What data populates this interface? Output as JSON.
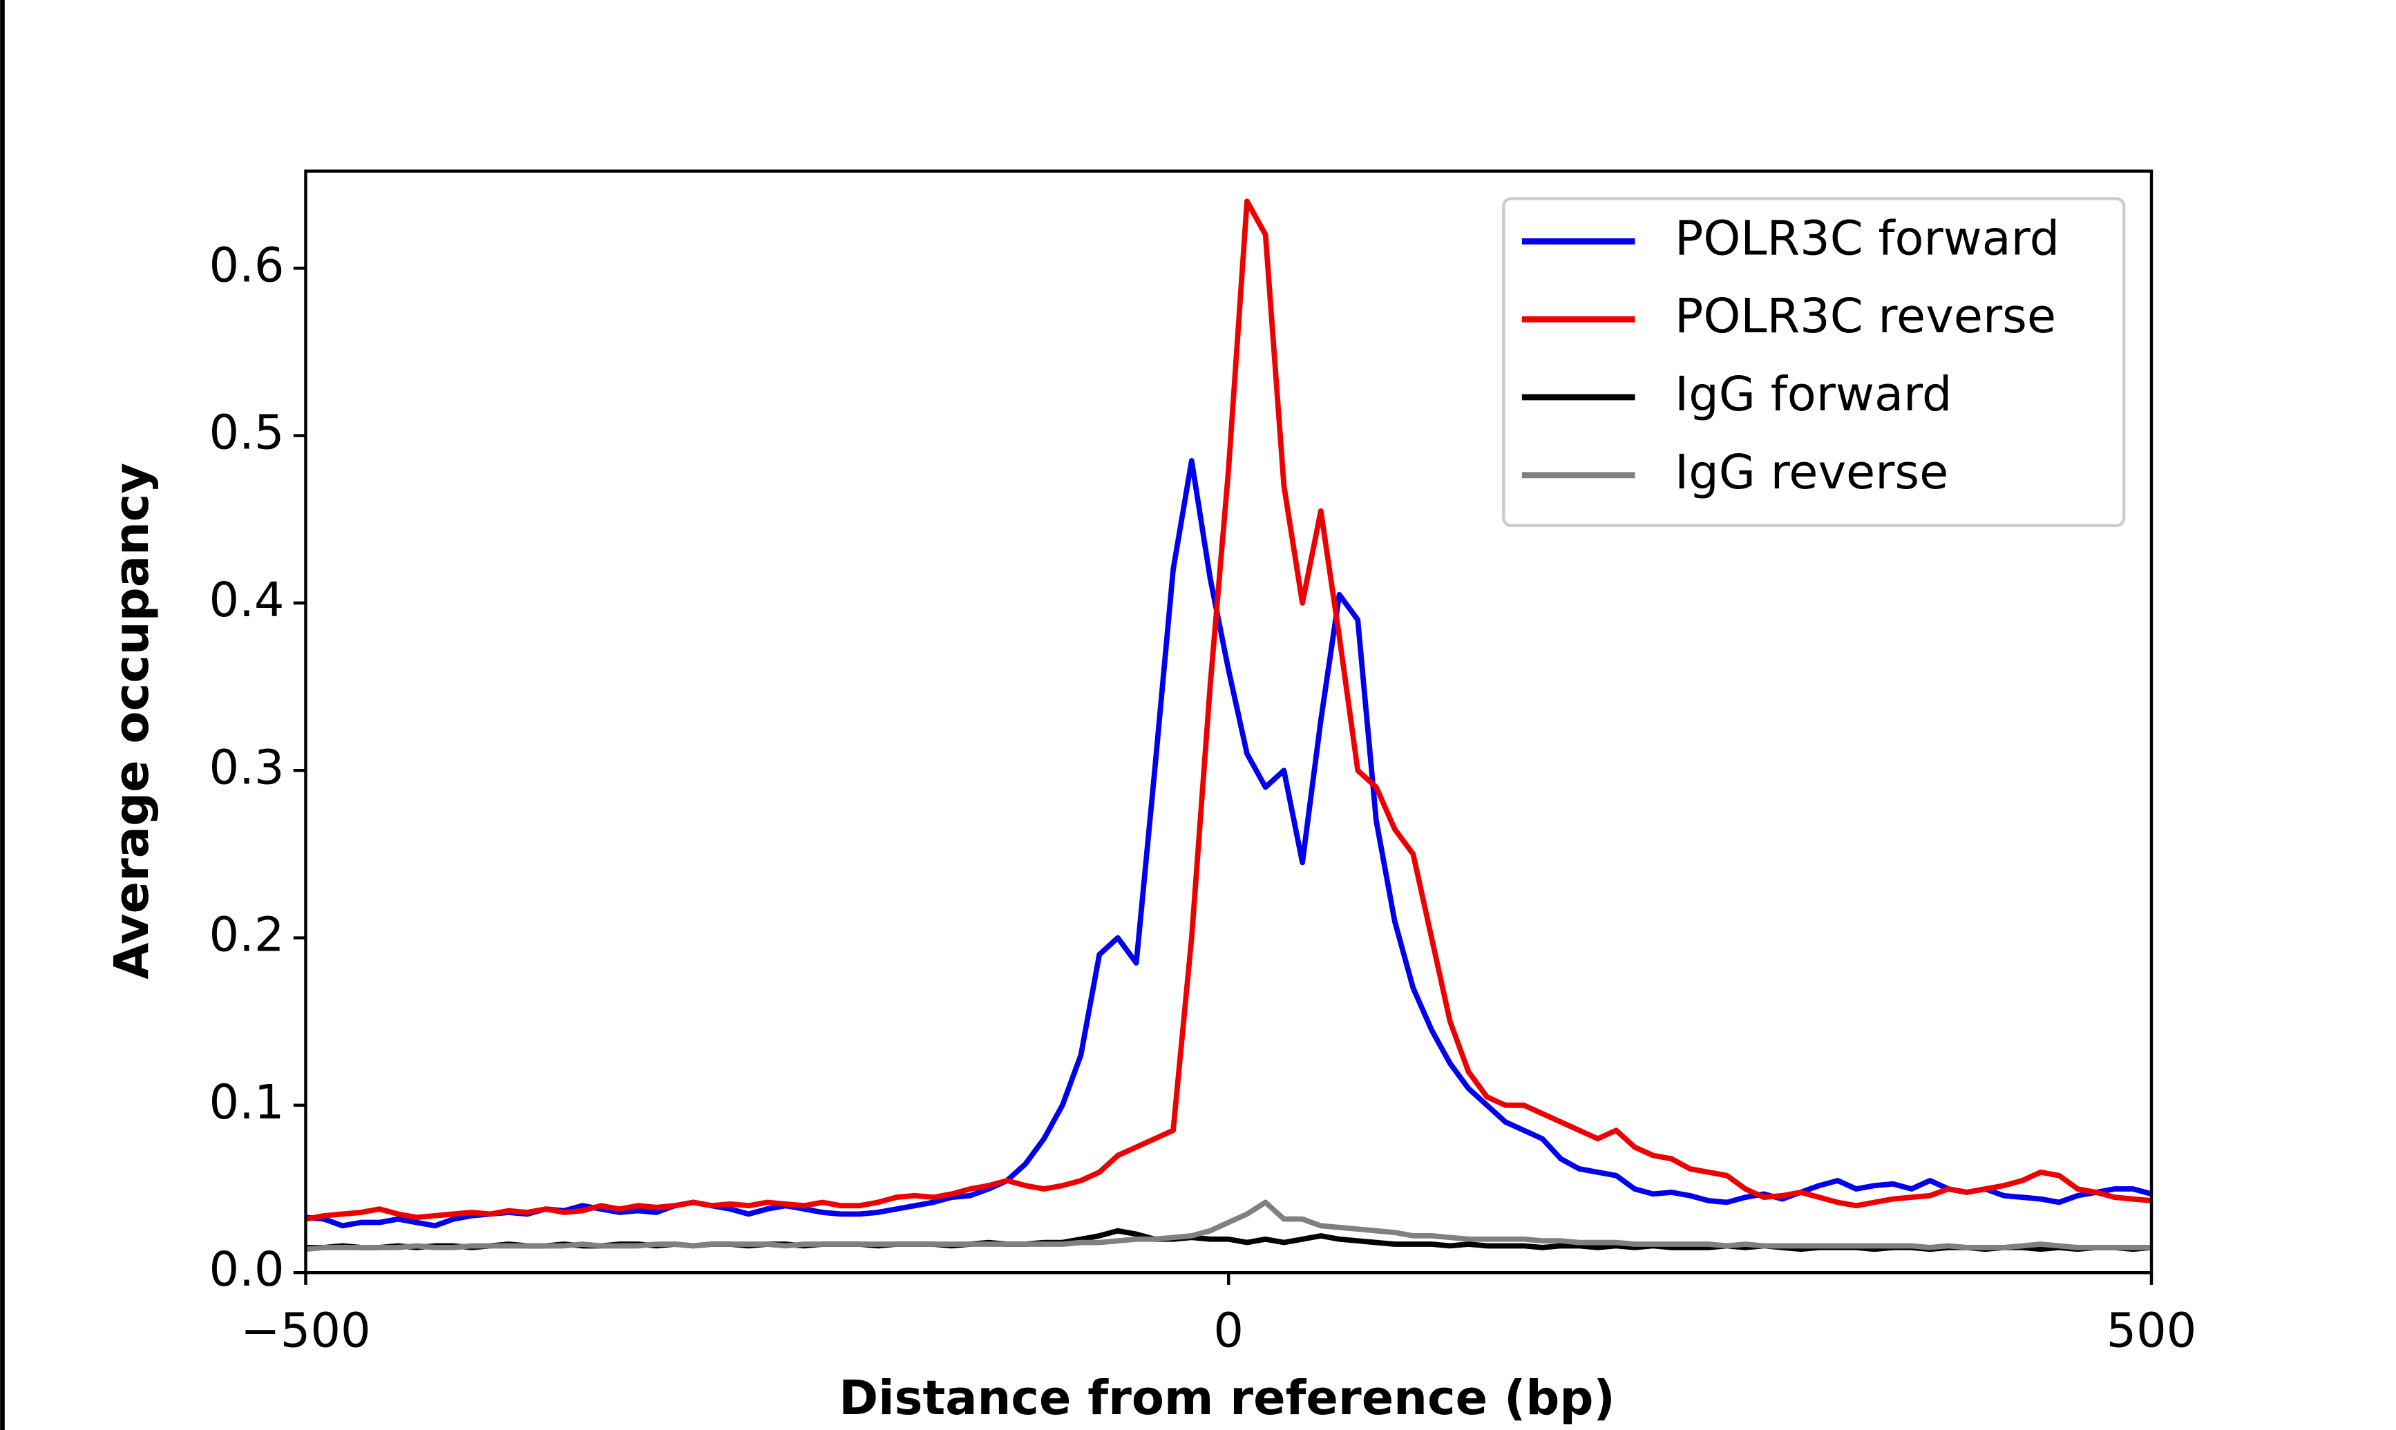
{
  "chart_data": {
    "type": "line",
    "xlabel": "Distance from reference (bp)",
    "ylabel": "Average occupancy",
    "xlim": [
      -500,
      500
    ],
    "ylim": [
      0,
      0.658
    ],
    "xticks": [
      {
        "value": -500,
        "label": "−500"
      },
      0,
      500
    ],
    "yticks": [
      {
        "value": 0,
        "label": "0.0"
      },
      0.1,
      0.2,
      0.3,
      0.4,
      0.5,
      0.6
    ],
    "legend": "upper right",
    "x": [
      -500,
      -490,
      -480,
      -470,
      -460,
      -450,
      -440,
      -430,
      -420,
      -410,
      -400,
      -390,
      -380,
      -370,
      -360,
      -350,
      -340,
      -330,
      -320,
      -310,
      -300,
      -290,
      -280,
      -270,
      -260,
      -250,
      -240,
      -230,
      -220,
      -210,
      -200,
      -190,
      -180,
      -170,
      -160,
      -150,
      -140,
      -130,
      -120,
      -110,
      -100,
      -90,
      -80,
      -70,
      -60,
      -50,
      -40,
      -30,
      -20,
      -10,
      0,
      10,
      20,
      30,
      40,
      50,
      60,
      70,
      80,
      90,
      100,
      110,
      120,
      130,
      140,
      150,
      160,
      170,
      180,
      190,
      200,
      210,
      220,
      230,
      240,
      250,
      260,
      270,
      280,
      290,
      300,
      310,
      320,
      330,
      340,
      350,
      360,
      370,
      380,
      390,
      400,
      410,
      420,
      430,
      440,
      450,
      460,
      470,
      480,
      490,
      500
    ],
    "series": [
      {
        "name": "POLR3C forward",
        "color": "#0000ee",
        "values": [
          0.033,
          0.032,
          0.028,
          0.03,
          0.03,
          0.032,
          0.03,
          0.028,
          0.032,
          0.034,
          0.035,
          0.036,
          0.035,
          0.038,
          0.037,
          0.04,
          0.038,
          0.036,
          0.037,
          0.036,
          0.04,
          0.042,
          0.04,
          0.038,
          0.035,
          0.038,
          0.04,
          0.038,
          0.036,
          0.035,
          0.035,
          0.036,
          0.038,
          0.04,
          0.042,
          0.045,
          0.046,
          0.05,
          0.055,
          0.065,
          0.08,
          0.1,
          0.13,
          0.19,
          0.2,
          0.185,
          0.3,
          0.42,
          0.485,
          0.415,
          0.36,
          0.31,
          0.29,
          0.3,
          0.245,
          0.33,
          0.405,
          0.39,
          0.27,
          0.21,
          0.17,
          0.145,
          0.125,
          0.11,
          0.1,
          0.09,
          0.085,
          0.08,
          0.068,
          0.062,
          0.06,
          0.058,
          0.05,
          0.047,
          0.048,
          0.046,
          0.043,
          0.042,
          0.045,
          0.047,
          0.044,
          0.048,
          0.052,
          0.055,
          0.05,
          0.052,
          0.053,
          0.05,
          0.055,
          0.05,
          0.048,
          0.05,
          0.046,
          0.045,
          0.044,
          0.042,
          0.046,
          0.048,
          0.05,
          0.05,
          0.047
        ]
      },
      {
        "name": "POLR3C reverse",
        "color": "#ee0000",
        "values": [
          0.032,
          0.034,
          0.035,
          0.036,
          0.038,
          0.035,
          0.033,
          0.034,
          0.035,
          0.036,
          0.035,
          0.037,
          0.036,
          0.038,
          0.036,
          0.037,
          0.04,
          0.038,
          0.04,
          0.039,
          0.04,
          0.042,
          0.04,
          0.041,
          0.04,
          0.042,
          0.041,
          0.04,
          0.042,
          0.04,
          0.04,
          0.042,
          0.045,
          0.046,
          0.045,
          0.047,
          0.05,
          0.052,
          0.055,
          0.052,
          0.05,
          0.052,
          0.055,
          0.06,
          0.07,
          0.075,
          0.08,
          0.085,
          0.2,
          0.35,
          0.48,
          0.64,
          0.62,
          0.47,
          0.4,
          0.455,
          0.38,
          0.3,
          0.29,
          0.265,
          0.25,
          0.2,
          0.15,
          0.12,
          0.105,
          0.1,
          0.1,
          0.095,
          0.09,
          0.085,
          0.08,
          0.085,
          0.075,
          0.07,
          0.068,
          0.062,
          0.06,
          0.058,
          0.05,
          0.045,
          0.046,
          0.048,
          0.045,
          0.042,
          0.04,
          0.042,
          0.044,
          0.045,
          0.046,
          0.05,
          0.048,
          0.05,
          0.052,
          0.055,
          0.06,
          0.058,
          0.05,
          0.048,
          0.045,
          0.044,
          0.043
        ]
      },
      {
        "name": "IgG forward",
        "color": "#000000",
        "values": [
          0.015,
          0.015,
          0.016,
          0.015,
          0.015,
          0.016,
          0.015,
          0.016,
          0.016,
          0.015,
          0.016,
          0.017,
          0.016,
          0.016,
          0.017,
          0.016,
          0.016,
          0.017,
          0.017,
          0.016,
          0.017,
          0.016,
          0.017,
          0.017,
          0.016,
          0.017,
          0.017,
          0.016,
          0.017,
          0.017,
          0.017,
          0.016,
          0.017,
          0.017,
          0.017,
          0.016,
          0.017,
          0.018,
          0.017,
          0.017,
          0.018,
          0.018,
          0.02,
          0.022,
          0.025,
          0.023,
          0.02,
          0.02,
          0.021,
          0.02,
          0.02,
          0.018,
          0.02,
          0.018,
          0.02,
          0.022,
          0.02,
          0.019,
          0.018,
          0.017,
          0.017,
          0.017,
          0.016,
          0.017,
          0.016,
          0.016,
          0.016,
          0.015,
          0.016,
          0.016,
          0.015,
          0.016,
          0.015,
          0.016,
          0.015,
          0.015,
          0.015,
          0.016,
          0.015,
          0.016,
          0.015,
          0.014,
          0.015,
          0.015,
          0.015,
          0.014,
          0.015,
          0.015,
          0.014,
          0.015,
          0.015,
          0.014,
          0.015,
          0.015,
          0.014,
          0.015,
          0.014,
          0.015,
          0.015,
          0.014,
          0.015
        ]
      },
      {
        "name": "IgG reverse",
        "color": "#808080",
        "values": [
          0.014,
          0.015,
          0.015,
          0.015,
          0.015,
          0.015,
          0.016,
          0.015,
          0.015,
          0.016,
          0.016,
          0.016,
          0.016,
          0.016,
          0.016,
          0.017,
          0.016,
          0.016,
          0.016,
          0.017,
          0.017,
          0.016,
          0.017,
          0.017,
          0.017,
          0.017,
          0.016,
          0.017,
          0.017,
          0.017,
          0.017,
          0.017,
          0.017,
          0.017,
          0.017,
          0.017,
          0.017,
          0.017,
          0.017,
          0.017,
          0.017,
          0.017,
          0.018,
          0.018,
          0.019,
          0.02,
          0.02,
          0.021,
          0.022,
          0.025,
          0.03,
          0.035,
          0.042,
          0.032,
          0.032,
          0.028,
          0.027,
          0.026,
          0.025,
          0.024,
          0.022,
          0.022,
          0.021,
          0.02,
          0.02,
          0.02,
          0.02,
          0.019,
          0.019,
          0.018,
          0.018,
          0.018,
          0.017,
          0.017,
          0.017,
          0.017,
          0.017,
          0.016,
          0.017,
          0.016,
          0.016,
          0.016,
          0.016,
          0.016,
          0.016,
          0.016,
          0.016,
          0.016,
          0.015,
          0.016,
          0.015,
          0.015,
          0.015,
          0.016,
          0.017,
          0.016,
          0.015,
          0.015,
          0.015,
          0.015,
          0.015
        ]
      }
    ]
  }
}
